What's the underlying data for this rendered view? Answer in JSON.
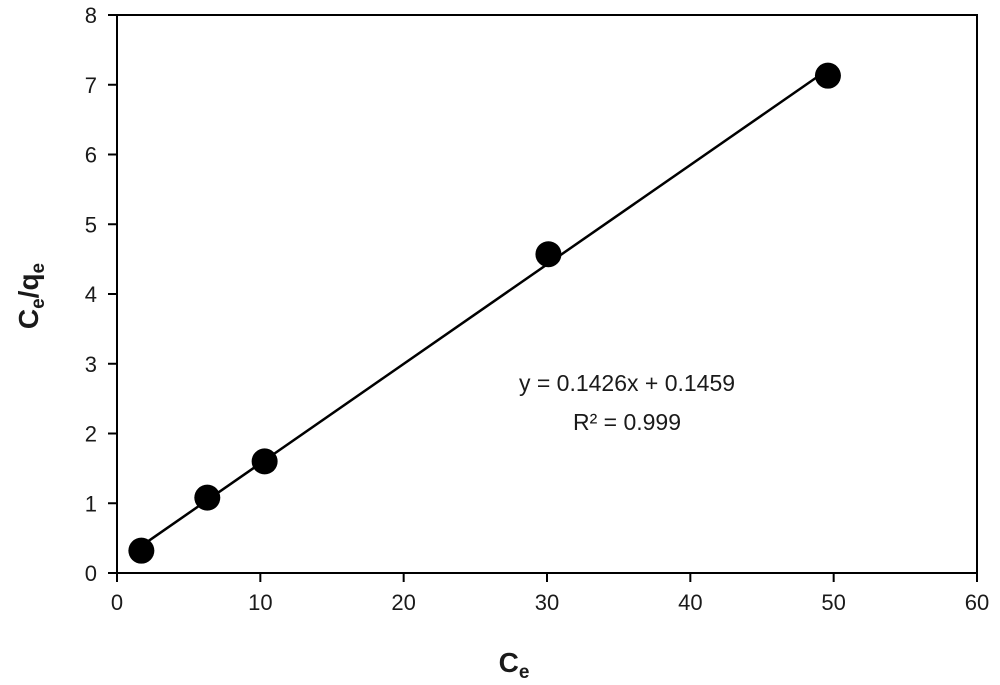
{
  "chart_data": {
    "type": "scatter",
    "title": "",
    "xlabel": {
      "base": "C",
      "sub": "e"
    },
    "ylabel": {
      "base": "C",
      "sub1": "e",
      "mid": "/q",
      "sub2": "e"
    },
    "xlim": [
      0,
      60
    ],
    "ylim": [
      0,
      8
    ],
    "x_ticks": [
      0,
      10,
      20,
      30,
      40,
      50,
      60
    ],
    "y_ticks": [
      0,
      1,
      2,
      3,
      4,
      5,
      6,
      7,
      8
    ],
    "grid": false,
    "legend": "none",
    "series": [
      {
        "points": [
          {
            "x": 1.7,
            "y": 0.32
          },
          {
            "x": 6.3,
            "y": 1.08
          },
          {
            "x": 10.3,
            "y": 1.6
          },
          {
            "x": 30.1,
            "y": 4.57
          },
          {
            "x": 49.6,
            "y": 7.13
          }
        ],
        "color": "#000000"
      }
    ],
    "trendline": {
      "slope": 0.1426,
      "intercept": 0.1459,
      "x_range": [
        1.7,
        49.6
      ],
      "equation_text": "y = 0.1426x + 0.1459",
      "r2_text": "R² = 0.999"
    }
  }
}
